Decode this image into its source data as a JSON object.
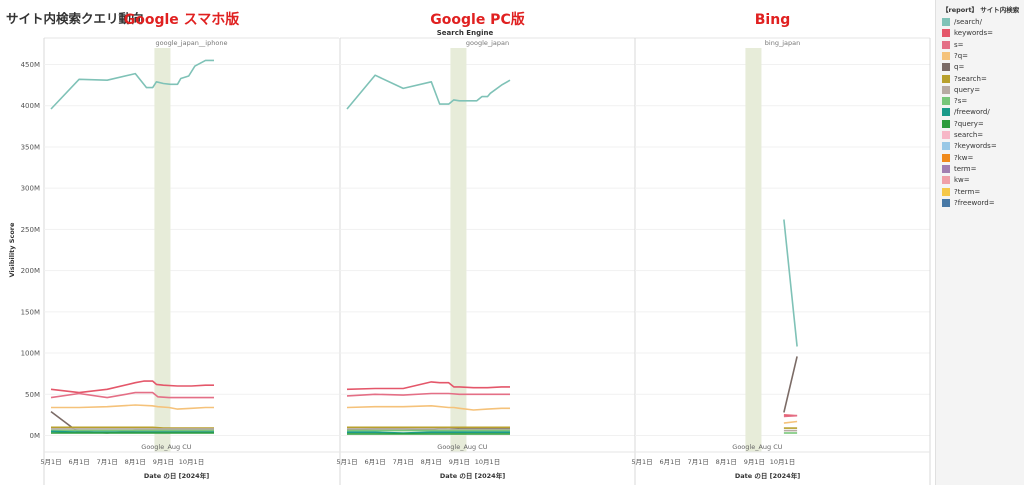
{
  "title": "サイト内検索クエリ動向",
  "axis_title_top": "Search Engine",
  "legend_title": "【report】 サイト内検索",
  "chart_data": {
    "type": "line",
    "ylabel": "Visibility Score",
    "xlabel": "Date の日 [2024年]",
    "ylim": [
      -20,
      470
    ],
    "yticks": [
      0,
      50,
      100,
      150,
      200,
      250,
      300,
      350,
      400,
      450
    ],
    "ytick_labels": [
      "0M",
      "50M",
      "100M",
      "150M",
      "200M",
      "250M",
      "300M",
      "350M",
      "400M",
      "450M"
    ],
    "xrange": [
      0.75,
      11.25
    ],
    "xticks": [
      1,
      2,
      3,
      4,
      5,
      6
    ],
    "xtick_labels": [
      "5月1日",
      "6月1日",
      "7月1日",
      "8月1日",
      "9月1日",
      "10月1日"
    ],
    "band": {
      "x0": 4.68,
      "x1": 5.25,
      "label": "Google_Aug CU",
      "color": "#e7ecd9"
    },
    "series_colors": {
      "/search/": "#7fc2b7",
      "keywords=": "#e4576a",
      "s=": "#e46f86",
      "?q=": "#f5c27a",
      "q=": "#7b6b66",
      "?search=": "#b8a02d",
      "query=": "#b7aaa3",
      "?s=": "#78c67a",
      "/freeword/": "#1a9a8a",
      "?query=": "#2c9c3c",
      "search=": "#f7b7c7",
      "?keywords=": "#99c8e6",
      "?kw=": "#f08a1c",
      "term=": "#a27fb1",
      "kw=": "#f0a0a8",
      "?term=": "#f5c84a",
      "?freeword=": "#4879a6"
    },
    "panels": [
      {
        "header": "google_japan__iphone",
        "annotation": "Google スマホ版",
        "series": [
          {
            "name": "/search/",
            "x": [
              1,
              2,
              3,
              4,
              4.4,
              4.62,
              4.75,
              5.0,
              5.25,
              5.5,
              5.62,
              5.9,
              6.12,
              6.5,
              6.8
            ],
            "y": [
              396,
              432,
              431,
              439,
              422,
              422,
              429,
              427,
              426,
              426,
              433,
              436,
              448,
              455,
              455
            ]
          },
          {
            "name": "keywords=",
            "x": [
              1,
              2,
              3,
              4,
              4.3,
              4.62,
              4.75,
              5,
              5.5,
              6,
              6.5,
              6.8
            ],
            "y": [
              56,
              52,
              56,
              64,
              66,
              66,
              62,
              61,
              60,
              60,
              61,
              61
            ]
          },
          {
            "name": "s=",
            "x": [
              1,
              2,
              3,
              4,
              4.62,
              4.8,
              5.2,
              5.5,
              6,
              6.5,
              6.8
            ],
            "y": [
              46,
              51,
              46,
              52,
              52,
              47,
              46,
              46,
              46,
              46,
              46
            ]
          },
          {
            "name": "?q=",
            "x": [
              1,
              2,
              3,
              4,
              4.6,
              4.8,
              5.2,
              5.5,
              6,
              6.5,
              6.8
            ],
            "y": [
              34,
              34,
              35,
              37,
              36,
              35,
              34,
              32,
              33,
              34,
              34
            ]
          },
          {
            "name": "q=",
            "x": [
              1,
              1.9,
              2.5,
              3,
              4,
              4.6,
              4.8,
              5.1,
              5.5,
              6,
              6.5,
              6.8
            ],
            "y": [
              29,
              6,
              4,
              3,
              6,
              6,
              6,
              6,
              6,
              6,
              6,
              6
            ]
          },
          {
            "name": "?search=",
            "x": [
              1,
              2,
              3,
              4,
              4.62,
              5,
              6,
              6.8
            ],
            "y": [
              10,
              10,
              10,
              10,
              10,
              9,
              9,
              9
            ]
          },
          {
            "name": "query=",
            "x": [
              1,
              2,
              3,
              4,
              4.62,
              5,
              6,
              6.8
            ],
            "y": [
              8,
              8,
              8,
              8,
              8,
              8,
              8,
              8
            ]
          },
          {
            "name": "?s=",
            "x": [
              1,
              2,
              3,
              4,
              4.62,
              5,
              6,
              6.8
            ],
            "y": [
              6,
              6,
              6,
              6,
              6,
              6,
              6,
              6
            ]
          },
          {
            "name": "/freeword/",
            "x": [
              1,
              2,
              3,
              4,
              4.62,
              5,
              6,
              6.8
            ],
            "y": [
              5,
              4,
              4,
              4,
              4,
              4,
              4,
              4
            ]
          },
          {
            "name": "?query=",
            "x": [
              1,
              2,
              3,
              4,
              4.62,
              5,
              6,
              6.8
            ],
            "y": [
              3,
              3,
              3,
              3,
              3,
              3,
              3,
              3
            ]
          }
        ]
      },
      {
        "header": "google_japan",
        "annotation": "Google PC版",
        "series": [
          {
            "name": "/search/",
            "x": [
              1,
              2,
              3,
              4,
              4.3,
              4.62,
              4.8,
              5,
              5.5,
              5.62,
              5.8,
              6,
              6.1,
              6.5,
              6.8
            ],
            "y": [
              396,
              437,
              421,
              429,
              402,
              402,
              407,
              406,
              406,
              406,
              411,
              411,
              415,
              425,
              431
            ]
          },
          {
            "name": "keywords=",
            "x": [
              1,
              2,
              3,
              4,
              4.3,
              4.62,
              4.8,
              5,
              5.5,
              6,
              6.5,
              6.8
            ],
            "y": [
              56,
              57,
              57,
              65,
              64,
              64,
              59,
              59,
              58,
              58,
              59,
              59
            ]
          },
          {
            "name": "s=",
            "x": [
              1,
              2,
              3,
              4,
              4.62,
              5,
              5.5,
              6,
              6.5,
              6.8
            ],
            "y": [
              48,
              50,
              49,
              51,
              51,
              50,
              50,
              50,
              50,
              50
            ]
          },
          {
            "name": "?q=",
            "x": [
              1,
              2,
              3,
              4,
              4.62,
              4.8,
              5,
              5.5,
              6,
              6.5,
              6.8
            ],
            "y": [
              34,
              35,
              35,
              36,
              34,
              34,
              33,
              31,
              32,
              33,
              33
            ]
          },
          {
            "name": "q=",
            "x": [
              1,
              2,
              3,
              4,
              4.62,
              5,
              6,
              6.8
            ],
            "y": [
              7,
              8,
              8,
              7,
              10,
              8,
              8,
              8
            ]
          },
          {
            "name": "?search=",
            "x": [
              1,
              2,
              3,
              4,
              4.62,
              5,
              6,
              6.8
            ],
            "y": [
              10,
              10,
              10,
              10,
              10,
              10,
              10,
              10
            ]
          },
          {
            "name": "query=",
            "x": [
              1,
              2,
              3,
              4,
              4.62,
              5,
              6,
              6.8
            ],
            "y": [
              8,
              8,
              8,
              8,
              8,
              7,
              7,
              7
            ]
          },
          {
            "name": "?s=",
            "x": [
              1,
              2,
              3,
              4,
              4.62,
              5,
              6,
              6.8
            ],
            "y": [
              6,
              6,
              6,
              6,
              6,
              6,
              6,
              6
            ]
          },
          {
            "name": "/freeword/",
            "x": [
              1,
              2,
              3,
              4,
              4.62,
              5,
              6,
              6.8
            ],
            "y": [
              4,
              4,
              3,
              4,
              4,
              4,
              4,
              4
            ]
          },
          {
            "name": "?query=",
            "x": [
              1,
              2,
              3,
              4,
              4.62,
              5,
              6,
              6.8
            ],
            "y": [
              2,
              2,
              2,
              2,
              2,
              2,
              2,
              2
            ]
          }
        ]
      },
      {
        "header": "bing_japan",
        "annotation": "Bing",
        "series": [
          {
            "name": "/search/",
            "x": [
              6.05,
              6.52
            ],
            "y": [
              262,
              108
            ]
          },
          {
            "name": "q=",
            "x": [
              6.05,
              6.52
            ],
            "y": [
              28,
              96
            ]
          },
          {
            "name": "keywords=",
            "x": [
              6.05,
              6.52
            ],
            "y": [
              25,
              24
            ]
          },
          {
            "name": "s=",
            "x": [
              6.05,
              6.52
            ],
            "y": [
              23,
              24
            ]
          },
          {
            "name": "?q=",
            "x": [
              6.05,
              6.52
            ],
            "y": [
              15,
              17
            ]
          },
          {
            "name": "?search=",
            "x": [
              6.05,
              6.52
            ],
            "y": [
              9,
              9
            ]
          },
          {
            "name": "query=",
            "x": [
              6.05,
              6.52
            ],
            "y": [
              6,
              6
            ]
          },
          {
            "name": "?s=",
            "x": [
              6.05,
              6.52
            ],
            "y": [
              3,
              3
            ]
          }
        ]
      }
    ]
  },
  "legend_items": [
    "/search/",
    "keywords=",
    "s=",
    "?q=",
    "q=",
    "?search=",
    "query=",
    "?s=",
    "/freeword/",
    "?query=",
    "search=",
    "?keywords=",
    "?kw=",
    "term=",
    "kw=",
    "?term=",
    "?freeword="
  ]
}
